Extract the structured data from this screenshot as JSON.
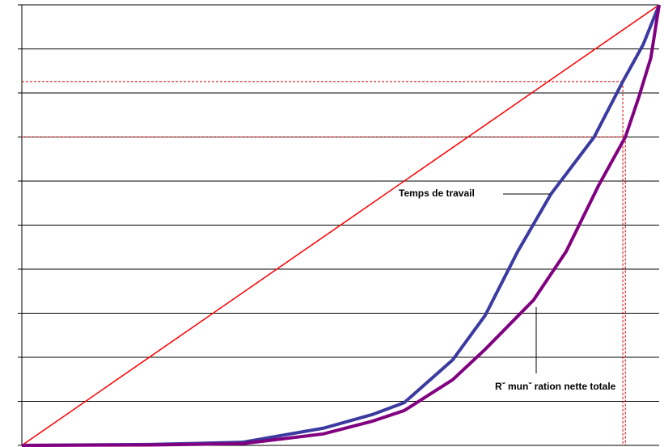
{
  "chart_data": {
    "type": "line",
    "xlim": [
      0,
      100
    ],
    "ylim": [
      0,
      100
    ],
    "yticks": [
      0,
      10,
      20,
      30,
      40,
      50,
      60,
      70,
      80,
      90,
      100
    ],
    "grid": true,
    "diagonal": {
      "color": "#ff0000",
      "x": [
        0,
        100
      ],
      "values": [
        0,
        100
      ]
    },
    "series": [
      {
        "name": "Temps de travail",
        "color": "#3a3aa0",
        "x": [
          0,
          20,
          34.6,
          47.3,
          55,
          60,
          67.6,
          72.7,
          77.8,
          83,
          89.8,
          94.3,
          97.5,
          100
        ],
        "values": [
          0,
          0.2,
          0.7,
          3.9,
          7,
          9.7,
          19.4,
          29.5,
          44,
          57,
          70,
          82.6,
          91,
          100
        ]
      },
      {
        "name": "Rˇ munˇ ration nette totale",
        "color": "#800080",
        "x": [
          0,
          20,
          34.6,
          47.3,
          55,
          60,
          67.6,
          72.7,
          80.3,
          85.4,
          90.5,
          94.7,
          96.8,
          98.7,
          100
        ],
        "values": [
          0,
          0.1,
          0.4,
          2.6,
          5.5,
          7.9,
          14.9,
          21.8,
          33,
          44,
          59,
          70,
          79,
          88,
          100
        ]
      }
    ],
    "reference_lines": [
      {
        "color": "#cc0000",
        "x": 94.3,
        "y": 82.6
      },
      {
        "color": "#cc0000",
        "x": 94.7,
        "y": 70
      }
    ]
  }
}
